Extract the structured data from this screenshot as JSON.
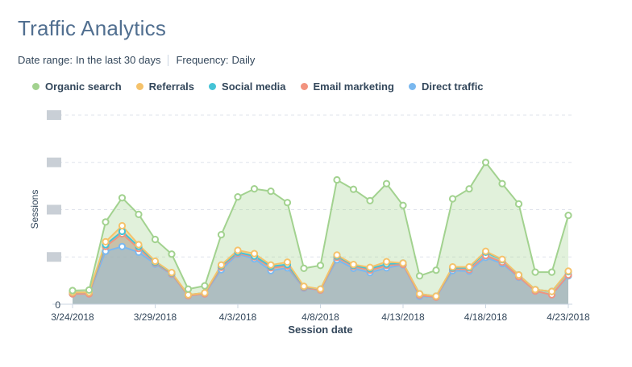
{
  "header": {
    "title": "Traffic Analytics",
    "date_range_label": "Date range:",
    "date_range_value": "In the last 30 days",
    "frequency_label": "Frequency:",
    "frequency_value": "Daily"
  },
  "colors": {
    "organic": "#a2d28f",
    "referrals": "#f5c26b",
    "social": "#45c3d6",
    "email": "#f2937f",
    "direct": "#7ab8ef"
  },
  "chart_data": {
    "type": "area",
    "stacked": true,
    "xlabel": "Session date",
    "ylabel": "Sessions",
    "y_tick_labels": [
      "0"
    ],
    "x_tick_labels": [
      "3/24/2018",
      "3/29/2018",
      "4/3/2018",
      "4/8/2018",
      "4/13/2018",
      "4/18/2018",
      "4/23/2018"
    ],
    "x": [
      "3/24/2018",
      "3/25/2018",
      "3/26/2018",
      "3/27/2018",
      "3/28/2018",
      "3/29/2018",
      "3/30/2018",
      "3/31/2018",
      "4/1/2018",
      "4/2/2018",
      "4/3/2018",
      "4/4/2018",
      "4/5/2018",
      "4/6/2018",
      "4/7/2018",
      "4/8/2018",
      "4/9/2018",
      "4/10/2018",
      "4/11/2018",
      "4/12/2018",
      "4/13/2018",
      "4/14/2018",
      "4/15/2018",
      "4/16/2018",
      "4/17/2018",
      "4/18/2018",
      "4/19/2018",
      "4/20/2018",
      "4/21/2018",
      "4/22/2018",
      "4/23/2018"
    ],
    "grid": true,
    "legend_position": "top-left",
    "series": [
      {
        "name": "Direct traffic",
        "color_key": "direct",
        "values": [
          0.22,
          0.22,
          1.12,
          1.22,
          1.1,
          0.85,
          0.63,
          0.18,
          0.22,
          0.73,
          1.06,
          0.96,
          0.71,
          0.77,
          0.34,
          0.3,
          0.94,
          0.76,
          0.67,
          0.77,
          0.83,
          0.17,
          0.15,
          0.71,
          0.7,
          0.99,
          0.86,
          0.57,
          0.28,
          0.2,
          0.6
        ]
      },
      {
        "name": "Email marketing",
        "color_key": "email",
        "values": [
          0,
          0,
          0.1,
          0.27,
          0.08,
          0.02,
          0.01,
          0,
          0,
          0.05,
          0.02,
          0.04,
          0.06,
          0.04,
          0.01,
          0,
          0.05,
          0.04,
          0.05,
          0.05,
          0.01,
          0.02,
          0,
          0.04,
          0.03,
          0.04,
          0.03,
          0.01,
          0,
          0,
          0.02
        ]
      },
      {
        "name": "Social media",
        "color_key": "social",
        "values": [
          0.03,
          0.03,
          0.04,
          0.05,
          0.04,
          0.02,
          0.02,
          0.02,
          0.02,
          0.03,
          0.02,
          0.02,
          0.03,
          0.03,
          0.02,
          0.02,
          0.03,
          0.02,
          0.03,
          0.03,
          0.03,
          0.03,
          0.02,
          0.02,
          0.04,
          0.07,
          0.05,
          0.04,
          0.03,
          0.07,
          0.07
        ]
      },
      {
        "name": "Referrals",
        "color_key": "referrals",
        "values": [
          0,
          0,
          0.06,
          0.12,
          0.04,
          0.02,
          0.01,
          0,
          0,
          0.02,
          0.04,
          0.05,
          0.03,
          0.05,
          0.01,
          0,
          0.02,
          0.02,
          0.03,
          0.05,
          0,
          0,
          0,
          0.02,
          0.02,
          0.02,
          0.01,
          0,
          0,
          0,
          0.01
        ]
      },
      {
        "name": "Organic search",
        "color_key": "organic",
        "values": [
          0.04,
          0.05,
          0.42,
          0.59,
          0.64,
          0.46,
          0.39,
          0.12,
          0.15,
          0.64,
          1.13,
          1.37,
          1.56,
          1.26,
          0.38,
          0.5,
          1.59,
          1.59,
          1.41,
          1.65,
          1.22,
          0.38,
          0.55,
          1.44,
          1.65,
          1.88,
          1.6,
          1.5,
          0.37,
          0.41,
          1.18
        ]
      }
    ]
  }
}
